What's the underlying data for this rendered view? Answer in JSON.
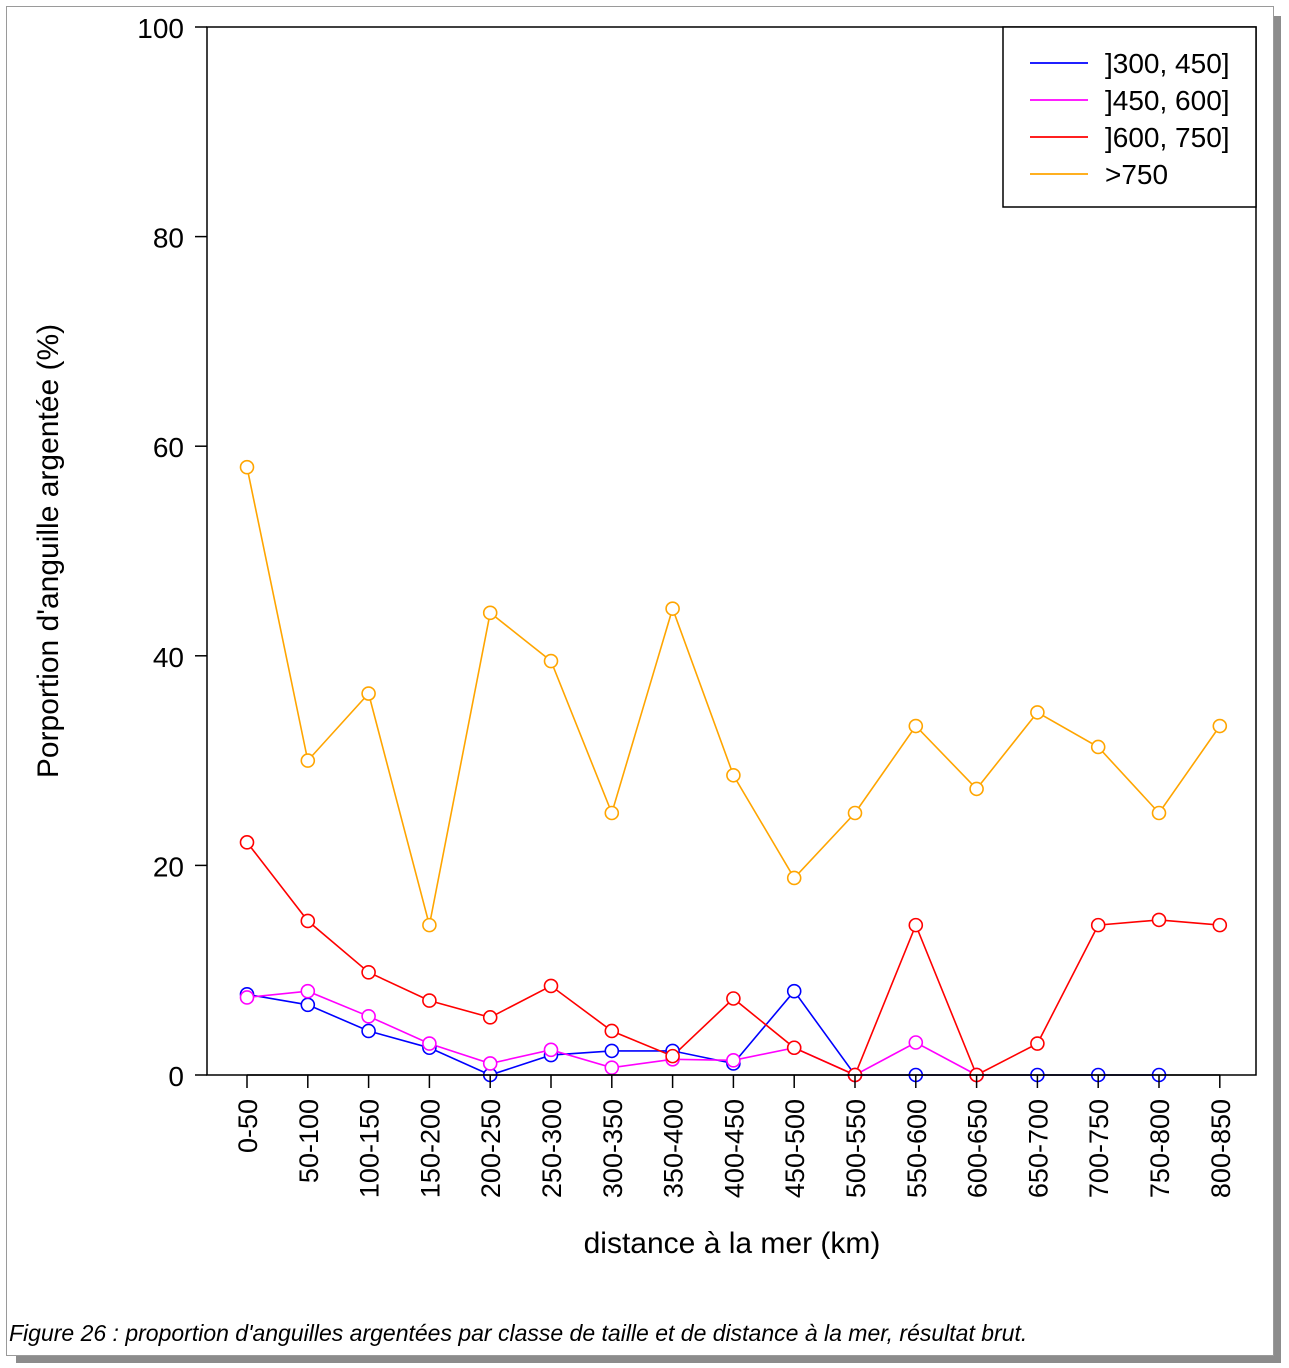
{
  "caption": "Figure 26 : proportion d'anguilles argentées par classe de taille et de distance à la mer, résultat brut.",
  "chart_data": {
    "type": "line",
    "xlabel": "distance à la mer (km)",
    "ylabel": "Porportion d'anguille argentée (%)",
    "ylim": [
      0,
      100
    ],
    "yticks": [
      "0",
      "20",
      "40",
      "60",
      "80",
      "100"
    ],
    "grid": false,
    "legend_position": "top-right",
    "categories": [
      "0-50",
      "50-100",
      "100-150",
      "150-200",
      "200-250",
      "250-300",
      "300-350",
      "350-400",
      "400-450",
      "450-500",
      "500-550",
      "550-600",
      "600-650",
      "650-700",
      "700-750",
      "750-800",
      "800-850"
    ],
    "series": [
      {
        "name": "]300, 450]",
        "color": "#0000ff",
        "values": [
          7.7,
          6.7,
          4.2,
          2.6,
          0,
          1.9,
          2.3,
          2.3,
          1.1,
          8.0,
          0,
          0,
          0,
          0,
          0,
          0,
          null
        ]
      },
      {
        "name": "]450, 600]",
        "color": "#ff00ff",
        "values": [
          7.4,
          8.0,
          5.6,
          3.0,
          1.1,
          2.4,
          0.7,
          1.5,
          1.4,
          2.6,
          0,
          3.1,
          0,
          null,
          null,
          null,
          null
        ]
      },
      {
        "name": "]600, 750]",
        "color": "#ff0000",
        "values": [
          22.2,
          14.7,
          9.8,
          7.1,
          5.5,
          8.5,
          4.2,
          1.8,
          7.3,
          2.6,
          0,
          14.3,
          0,
          3.0,
          14.3,
          14.8,
          14.3
        ]
      },
      {
        "name": ">750",
        "color": "#ffa500",
        "values": [
          58.0,
          30.0,
          36.4,
          14.3,
          44.1,
          39.5,
          25.0,
          44.5,
          28.6,
          18.8,
          25.0,
          33.3,
          27.3,
          34.6,
          31.3,
          25.0,
          33.3
        ]
      }
    ]
  }
}
